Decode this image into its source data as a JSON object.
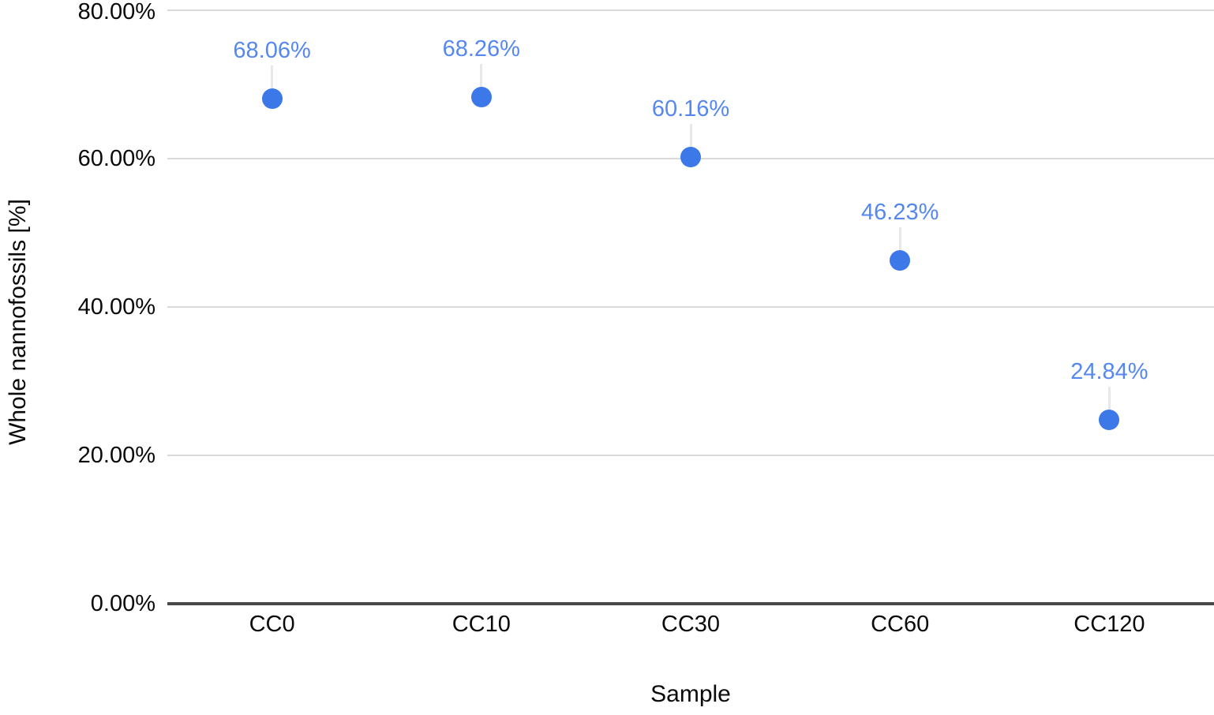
{
  "chart_data": {
    "type": "scatter",
    "title": "",
    "xlabel": "Sample",
    "ylabel": "Whole nannofossils [%]",
    "categories": [
      "CC0",
      "CC10",
      "CC30",
      "CC60",
      "CC120"
    ],
    "series": [
      {
        "name": "Whole nannofossils",
        "values": [
          68.06,
          68.26,
          60.16,
          46.23,
          24.84
        ],
        "point_labels": [
          "68.06%",
          "68.26%",
          "60.16%",
          "46.23%",
          "24.84%"
        ]
      }
    ],
    "ylim": [
      0,
      80
    ],
    "yticks": [
      {
        "value": 0,
        "label": "0.00%"
      },
      {
        "value": 20,
        "label": "20.00%"
      },
      {
        "value": 40,
        "label": "40.00%"
      },
      {
        "value": 60,
        "label": "60.00%"
      },
      {
        "value": 80,
        "label": "80.00%"
      }
    ],
    "grid": true,
    "legend_position": "none",
    "colors": {
      "point": "#3c78e8",
      "data_label": "#5587f0",
      "gridline": "#dadada",
      "axis_line": "#494949",
      "leader_line": "#e8e8e8",
      "tick_text": "#0a0a0a",
      "background": "#ffffff"
    }
  }
}
